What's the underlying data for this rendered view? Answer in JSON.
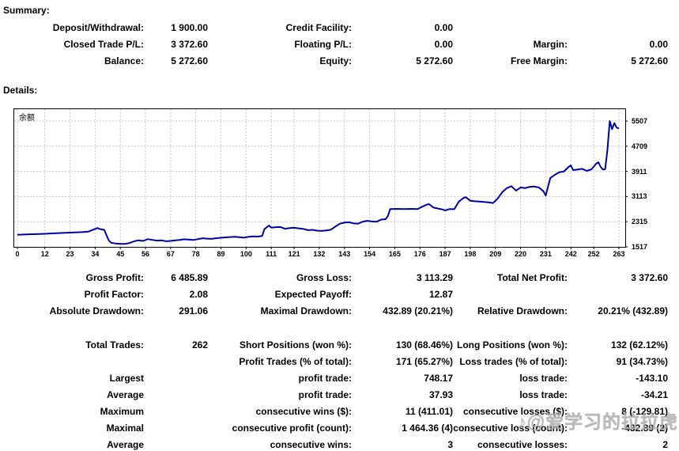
{
  "summary": {
    "title": "Summary:",
    "rows": [
      [
        "Deposit/Withdrawal:",
        "1 900.00",
        "Credit Facility:",
        "0.00",
        "",
        ""
      ],
      [
        "Closed Trade P/L:",
        "3 372.60",
        "Floating P/L:",
        "0.00",
        "Margin:",
        "0.00"
      ],
      [
        "Balance:",
        "5 272.60",
        "Equity:",
        "5 272.60",
        "Free Margin:",
        "5 272.60"
      ]
    ]
  },
  "details": {
    "title": "Details:",
    "block1": [
      [
        "Gross Profit:",
        "6 485.89",
        "Gross Loss:",
        "3 113.29",
        "Total Net Profit:",
        "3 372.60"
      ],
      [
        "Profit Factor:",
        "2.08",
        "Expected Payoff:",
        "12.87",
        "",
        ""
      ],
      [
        "Absolute Drawdown:",
        "291.06",
        "Maximal Drawdown:",
        "432.89 (20.21%)",
        "Relative Drawdown:",
        "20.21% (432.89)"
      ]
    ],
    "block2": [
      [
        "Total Trades:",
        "262",
        "Short Positions (won %):",
        "130 (68.46%)",
        "Long Positions (won %):",
        "132 (62.12%)"
      ],
      [
        "",
        "",
        "Profit Trades (% of total):",
        "171 (65.27%)",
        "Loss trades (% of total):",
        "91 (34.73%)"
      ],
      [
        "Largest",
        "",
        "profit trade:",
        "748.17",
        "loss trade:",
        "-143.10"
      ],
      [
        "Average",
        "",
        "profit trade:",
        "37.93",
        "loss trade:",
        "-34.21"
      ],
      [
        "Maximum",
        "",
        "consecutive wins ($):",
        "11 (411.01)",
        "consecutive losses ($):",
        "8 (-129.81)"
      ],
      [
        "Maximal",
        "",
        "consecutive profit (count):",
        "1 464.36 (4)",
        "consecutive loss (count):",
        "-432.89 (2)"
      ],
      [
        "Average",
        "",
        "consecutive wins:",
        "3",
        "consecutive losses:",
        "2"
      ]
    ]
  },
  "chart_data": {
    "type": "line",
    "title": "余额",
    "xlabel": "",
    "ylabel": "",
    "x_ticks": [
      0,
      12,
      23,
      34,
      45,
      56,
      67,
      78,
      89,
      100,
      111,
      121,
      132,
      143,
      154,
      165,
      176,
      187,
      198,
      209,
      220,
      231,
      242,
      252,
      263
    ],
    "y_ticks": [
      1517,
      2315,
      3113,
      3911,
      4709,
      5507
    ],
    "xlim": [
      0,
      267
    ],
    "ylim": [
      1517,
      5900
    ],
    "grid": true,
    "legend_position": "none",
    "line_color": "#0000AA",
    "grid_color": "#c8c8c8",
    "series": [
      {
        "name": "余额",
        "points": [
          [
            0,
            1900
          ],
          [
            4,
            1910
          ],
          [
            8,
            1920
          ],
          [
            12,
            1930
          ],
          [
            16,
            1945
          ],
          [
            20,
            1958
          ],
          [
            24,
            1972
          ],
          [
            28,
            1985
          ],
          [
            31,
            1998
          ],
          [
            33,
            2060
          ],
          [
            35,
            2115
          ],
          [
            36,
            2085
          ],
          [
            38,
            2055
          ],
          [
            39,
            1880
          ],
          [
            40,
            1720
          ],
          [
            41,
            1648
          ],
          [
            43,
            1622
          ],
          [
            45,
            1610
          ],
          [
            47,
            1609
          ],
          [
            49,
            1638
          ],
          [
            51,
            1693
          ],
          [
            53,
            1726
          ],
          [
            55,
            1705
          ],
          [
            57,
            1762
          ],
          [
            59,
            1738
          ],
          [
            61,
            1715
          ],
          [
            63,
            1722
          ],
          [
            65,
            1694
          ],
          [
            67,
            1706
          ],
          [
            69,
            1722
          ],
          [
            71,
            1737
          ],
          [
            73,
            1758
          ],
          [
            75,
            1745
          ],
          [
            77,
            1736
          ],
          [
            79,
            1762
          ],
          [
            81,
            1790
          ],
          [
            83,
            1778
          ],
          [
            85,
            1771
          ],
          [
            87,
            1794
          ],
          [
            89,
            1806
          ],
          [
            91,
            1818
          ],
          [
            93,
            1828
          ],
          [
            95,
            1836
          ],
          [
            97,
            1824
          ],
          [
            99,
            1808
          ],
          [
            101,
            1832
          ],
          [
            103,
            1851
          ],
          [
            105,
            1843
          ],
          [
            107,
            1860
          ],
          [
            108,
            2080
          ],
          [
            110,
            2195
          ],
          [
            111,
            2128
          ],
          [
            113,
            2142
          ],
          [
            115,
            2146
          ],
          [
            117,
            2092
          ],
          [
            119,
            2112
          ],
          [
            121,
            2122
          ],
          [
            123,
            2103
          ],
          [
            125,
            2087
          ],
          [
            127,
            2047
          ],
          [
            129,
            2056
          ],
          [
            131,
            2032
          ],
          [
            133,
            2022
          ],
          [
            135,
            2038
          ],
          [
            137,
            2060
          ],
          [
            139,
            2160
          ],
          [
            141,
            2252
          ],
          [
            143,
            2287
          ],
          [
            145,
            2297
          ],
          [
            147,
            2262
          ],
          [
            149,
            2252
          ],
          [
            151,
            2318
          ],
          [
            153,
            2342
          ],
          [
            155,
            2322
          ],
          [
            157,
            2312
          ],
          [
            159,
            2382
          ],
          [
            161,
            2396
          ],
          [
            162,
            2500
          ],
          [
            163,
            2715
          ],
          [
            166,
            2722
          ],
          [
            169,
            2716
          ],
          [
            172,
            2721
          ],
          [
            175,
            2717
          ],
          [
            177,
            2792
          ],
          [
            179,
            2856
          ],
          [
            180,
            2872
          ],
          [
            182,
            2762
          ],
          [
            184,
            2732
          ],
          [
            186,
            2702
          ],
          [
            187,
            2672
          ],
          [
            189,
            2716
          ],
          [
            191,
            2712
          ],
          [
            193,
            2952
          ],
          [
            195,
            3066
          ],
          [
            196,
            3092
          ],
          [
            198,
            2982
          ],
          [
            200,
            2962
          ],
          [
            202,
            2952
          ],
          [
            204,
            2942
          ],
          [
            206,
            2928
          ],
          [
            208,
            2908
          ],
          [
            210,
            3050
          ],
          [
            212,
            3250
          ],
          [
            214,
            3380
          ],
          [
            216,
            3442
          ],
          [
            218,
            3302
          ],
          [
            220,
            3402
          ],
          [
            222,
            3382
          ],
          [
            224,
            3422
          ],
          [
            226,
            3428
          ],
          [
            228,
            3402
          ],
          [
            230,
            3282
          ],
          [
            231,
            3142
          ],
          [
            233,
            3702
          ],
          [
            235,
            3802
          ],
          [
            237,
            3886
          ],
          [
            239,
            3912
          ],
          [
            241,
            4052
          ],
          [
            242,
            4102
          ],
          [
            243,
            3952
          ],
          [
            245,
            3972
          ],
          [
            247,
            3992
          ],
          [
            249,
            3926
          ],
          [
            251,
            3976
          ],
          [
            253,
            4152
          ],
          [
            254,
            4202
          ],
          [
            255,
            4052
          ],
          [
            256,
            3972
          ],
          [
            257,
            3978
          ],
          [
            258,
            4600
          ],
          [
            259,
            5507
          ],
          [
            260,
            5252
          ],
          [
            261,
            5442
          ],
          [
            262,
            5302
          ],
          [
            263,
            5272.6
          ]
        ]
      }
    ]
  },
  "watermark": "♪@爱学习的拉拉虎"
}
